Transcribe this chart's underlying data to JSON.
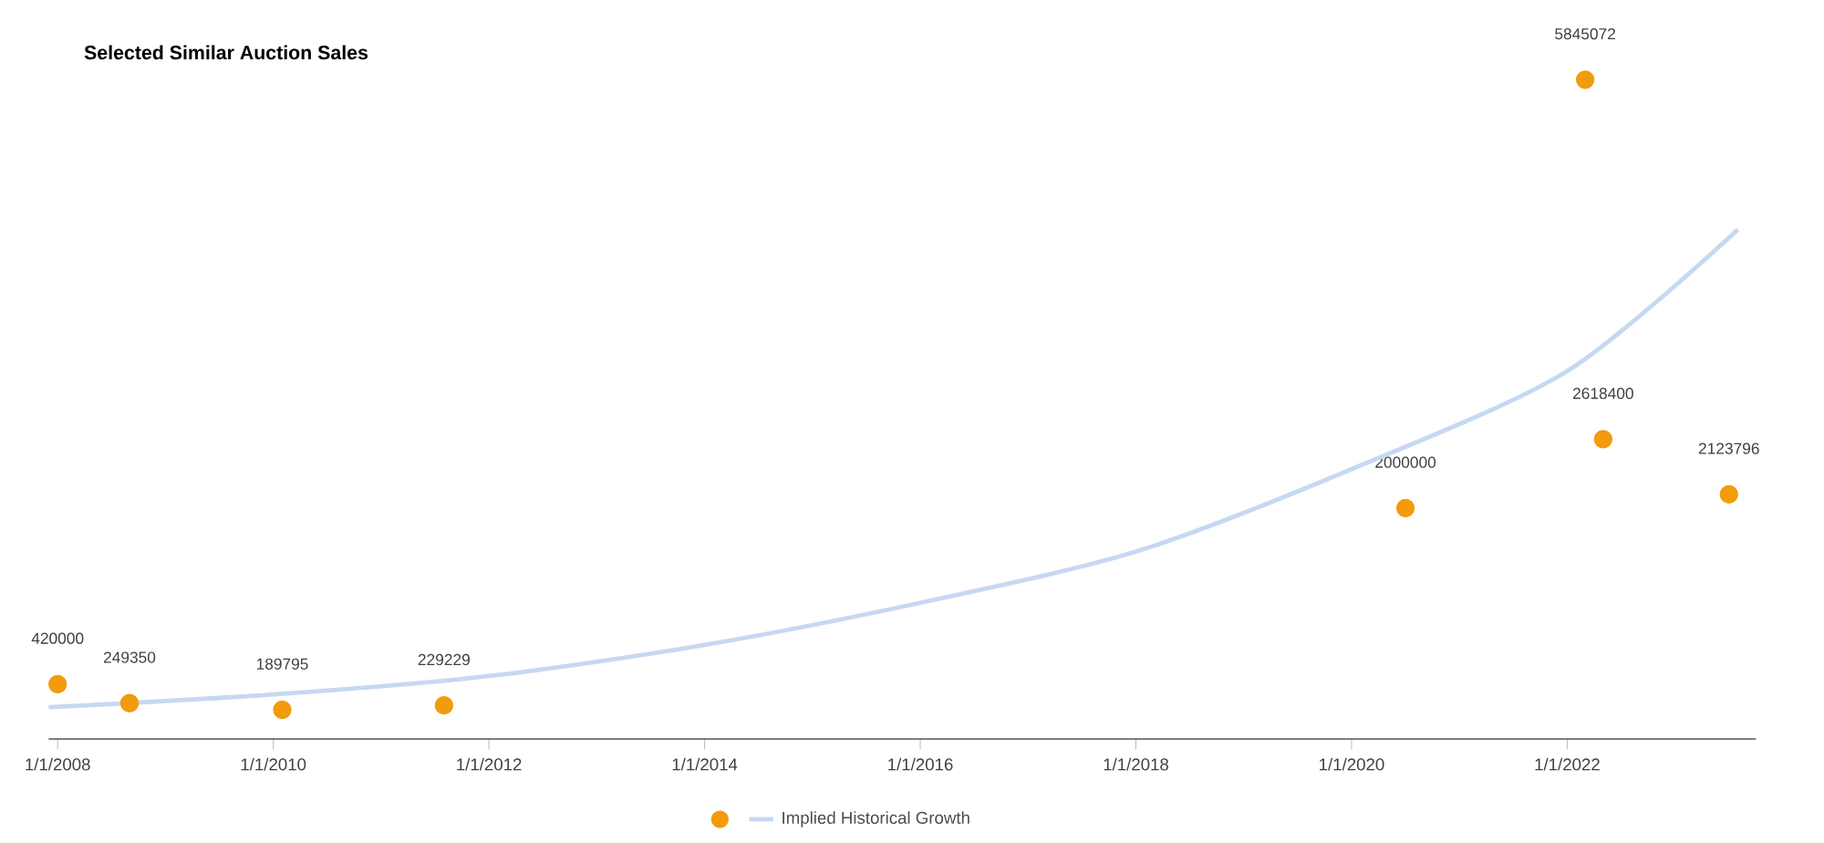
{
  "chart_data": {
    "type": "scatter",
    "title": "Selected Similar Auction Sales",
    "series": [
      {
        "color": "#f29b0c",
        "marker": "circle",
        "x": [
          "2008-01",
          "2008-09",
          "2010-02",
          "2011-08",
          "2020-07",
          "2022-03",
          "2022-05",
          "2023-07"
        ],
        "values": [
          420000,
          249350,
          189795,
          229229,
          2000000,
          5845072,
          2618400,
          2123796
        ],
        "value_labels": [
          "420000",
          "249350",
          "189795",
          "229229",
          "2000000",
          "5845072",
          "2618400",
          "2123796"
        ]
      },
      {
        "type": "line",
        "name": "Implied Historical Growth",
        "color": "#c6d8f2",
        "marker": "none",
        "x": [
          "2007-12",
          "2010-01",
          "2012-01",
          "2014-01",
          "2016-01",
          "2018-01",
          "2020-01",
          "2022-01",
          "2023-08"
        ],
        "values": [
          213000,
          328000,
          493000,
          772000,
          1150000,
          1610000,
          2350000,
          3230000,
          4500000
        ]
      }
    ],
    "xlim": [
      "2007-12",
      "2023-10"
    ],
    "xticks": [
      {
        "value": "2008-01-01",
        "label": "1/1/2008"
      },
      {
        "value": "2010-01-01",
        "label": "1/1/2010"
      },
      {
        "value": "2012-01-01",
        "label": "1/1/2012"
      },
      {
        "value": "2014-01-01",
        "label": "1/1/2014"
      },
      {
        "value": "2016-01-01",
        "label": "1/1/2016"
      },
      {
        "value": "2018-01-01",
        "label": "1/1/2018"
      },
      {
        "value": "2020-01-01",
        "label": "1/1/2020"
      },
      {
        "value": "2022-01-01",
        "label": "1/1/2022"
      }
    ],
    "tick_labels": "x",
    "grid": false,
    "legend": "bottom"
  }
}
